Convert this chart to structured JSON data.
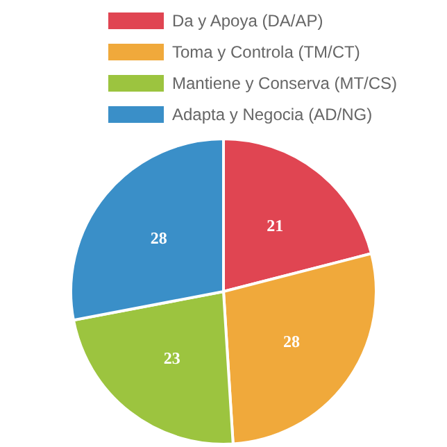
{
  "chart_data": {
    "type": "pie",
    "categories": [
      "Da y Apoya (DA/AP)",
      "Toma y Controla (TM/CT)",
      "Mantiene y Conserva (MT/CS)",
      "Adapta y Negocia (AD/NG)"
    ],
    "values": [
      21,
      28,
      23,
      28
    ],
    "colors": [
      "#e04552",
      "#f0a93b",
      "#9cc43f",
      "#3a8fc8"
    ],
    "data_labels": true,
    "legend": "top"
  }
}
